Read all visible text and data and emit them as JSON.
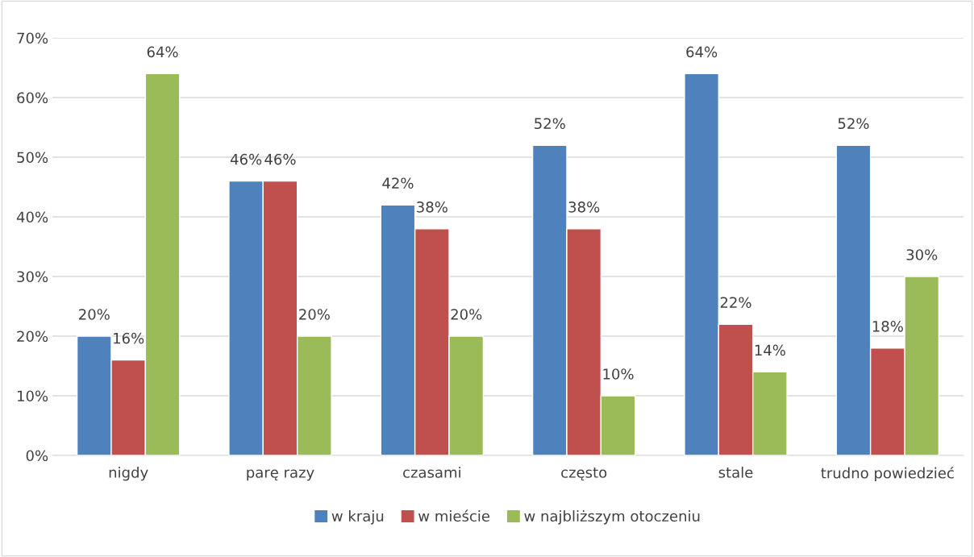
{
  "chart_data": {
    "type": "bar",
    "categories": [
      "nigdy",
      "parę razy",
      "czasami",
      "często",
      "stale",
      "trudno powiedzieć"
    ],
    "series": [
      {
        "name": "w kraju",
        "color": "#4f81bd",
        "values": [
          20,
          46,
          42,
          52,
          64,
          52
        ],
        "value_labels": [
          "20%",
          "46%",
          "42%",
          "52%",
          "64%",
          "52%"
        ]
      },
      {
        "name": "w mieście",
        "color": "#c0504d",
        "values": [
          16,
          46,
          38,
          38,
          22,
          18
        ],
        "value_labels": [
          "16%",
          "46%",
          "38%",
          "38%",
          "22%",
          "18%"
        ]
      },
      {
        "name": "w najbliższym otoczeniu",
        "color": "#9bbb59",
        "values": [
          64,
          20,
          20,
          10,
          14,
          30
        ],
        "value_labels": [
          "64%",
          "20%",
          "20%",
          "10%",
          "14%",
          "30%"
        ]
      }
    ],
    "ylim": [
      0,
      70
    ],
    "yticks": [
      {
        "value": 0,
        "label": "0%"
      },
      {
        "value": 10,
        "label": "10%"
      },
      {
        "value": 20,
        "label": "20%"
      },
      {
        "value": 30,
        "label": "30%"
      },
      {
        "value": 40,
        "label": "40%"
      },
      {
        "value": 50,
        "label": "50%"
      },
      {
        "value": 60,
        "label": "60%"
      },
      {
        "value": 70,
        "label": "70%"
      }
    ],
    "grid": "y",
    "legend": "bottom"
  }
}
